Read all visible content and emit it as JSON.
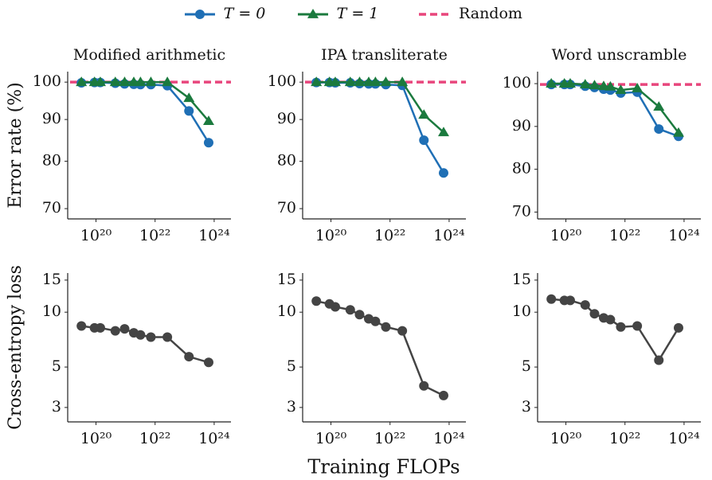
{
  "figure": {
    "xlabel": "Training FLOPs"
  },
  "chart_data": [
    {
      "type": "line",
      "title": "Modified arithmetic",
      "ylabel": "Error rate (%)",
      "xlog": true,
      "ylog": true,
      "x": [
        3.2e+19,
        8.9e+19,
        1.4e+20,
        4.5e+20,
        9.3e+20,
        1.9e+21,
        3.2e+21,
        7.2e+21,
        2.6e+22,
        1.4e+23,
        6.5e+23
      ],
      "xlim": [
        1.1e+19,
        3.7e+24
      ],
      "xticks": [
        {
          "value": 1e+20,
          "label": "10²⁰"
        },
        {
          "value": 1e+22,
          "label": "10²²"
        },
        {
          "value": 1e+24,
          "label": "10²⁴"
        }
      ],
      "ylim": [
        68,
        103
      ],
      "yticks": [
        70,
        80,
        90,
        100
      ],
      "series": [
        {
          "name": "T = 0",
          "color": "#1f6fb5",
          "marker": "circle",
          "values": [
            99.8,
            99.9,
            99.9,
            99.7,
            99.5,
            99.4,
            99.3,
            99.3,
            99.0,
            92.2,
            84.3
          ]
        },
        {
          "name": "T = 1",
          "color": "#1b7a3e",
          "marker": "triangle",
          "values": [
            100,
            100,
            100,
            100,
            100,
            100,
            100,
            100,
            100,
            95.6,
            89.6
          ]
        }
      ],
      "hlines": [
        {
          "name": "Random",
          "color": "#e8467c",
          "value": 100
        }
      ]
    },
    {
      "type": "line",
      "title": "IPA transliterate",
      "xlog": true,
      "ylog": true,
      "x": [
        3.2e+19,
        8.9e+19,
        1.4e+20,
        4.5e+20,
        9.3e+20,
        1.9e+21,
        3.2e+21,
        7.2e+21,
        2.6e+22,
        1.4e+23,
        6.5e+23
      ],
      "xlim": [
        1.1e+19,
        3.7e+24
      ],
      "xticks": [
        {
          "value": 1e+20,
          "label": "10²⁰"
        },
        {
          "value": 1e+22,
          "label": "10²²"
        },
        {
          "value": 1e+24,
          "label": "10²⁴"
        }
      ],
      "ylim": [
        68,
        103
      ],
      "yticks": [
        70,
        80,
        90,
        100
      ],
      "series": [
        {
          "name": "T = 0",
          "color": "#1f6fb5",
          "marker": "circle",
          "values": [
            99.9,
            99.9,
            99.8,
            99.8,
            99.6,
            99.5,
            99.5,
            99.3,
            99.1,
            84.9,
            77.4
          ]
        },
        {
          "name": "T = 1",
          "color": "#1b7a3e",
          "marker": "triangle",
          "values": [
            100,
            100,
            100,
            100,
            100,
            100,
            100,
            100,
            100,
            91.2,
            86.8
          ]
        }
      ],
      "hlines": [
        {
          "name": "Random",
          "color": "#e8467c",
          "value": 100
        }
      ]
    },
    {
      "type": "line",
      "title": "Word unscramble",
      "xlog": true,
      "ylog": false,
      "x": [
        3.2e+19,
        8.9e+19,
        1.4e+20,
        4.5e+20,
        9.3e+20,
        1.9e+21,
        3.2e+21,
        7.2e+21,
        2.6e+22,
        1.4e+23,
        6.5e+23
      ],
      "xlim": [
        1.1e+19,
        3.7e+24
      ],
      "xticks": [
        {
          "value": 1e+20,
          "label": "10²⁰"
        },
        {
          "value": 1e+22,
          "label": "10²²"
        },
        {
          "value": 1e+24,
          "label": "10²⁴"
        }
      ],
      "ylim": [
        68.4,
        102.8
      ],
      "yticks": [
        70,
        80,
        90,
        100
      ],
      "series": [
        {
          "name": "T = 0",
          "color": "#1f6fb5",
          "marker": "circle",
          "values": [
            99.8,
            99.8,
            99.8,
            99.4,
            99.1,
            98.7,
            98.5,
            97.8,
            98.0,
            89.4,
            87.7
          ]
        },
        {
          "name": "T = 1",
          "color": "#1b7a3e",
          "marker": "triangle",
          "values": [
            100,
            100,
            100,
            99.8,
            99.6,
            99.4,
            99.3,
            98.5,
            98.9,
            94.6,
            88.5
          ]
        }
      ],
      "hlines": [
        {
          "name": "Random",
          "color": "#e8467c",
          "value": 99.8
        }
      ]
    },
    {
      "type": "line",
      "ylabel": "Cross-entropy loss",
      "xlog": true,
      "ylog": true,
      "x": [
        3.2e+19,
        8.9e+19,
        1.4e+20,
        4.5e+20,
        9.3e+20,
        1.9e+21,
        3.2e+21,
        7.2e+21,
        2.6e+22,
        1.4e+23,
        6.5e+23
      ],
      "xlim": [
        1.1e+19,
        3.7e+24
      ],
      "xticks": [
        {
          "value": 1e+20,
          "label": "10²⁰"
        },
        {
          "value": 1e+22,
          "label": "10²²"
        },
        {
          "value": 1e+24,
          "label": "10²⁴"
        }
      ],
      "ylim": [
        2.5,
        16.4
      ],
      "yticks": [
        3,
        5,
        10,
        15
      ],
      "series": [
        {
          "color": "#444444",
          "marker": "circle",
          "values": [
            8.4,
            8.2,
            8.2,
            7.9,
            8.1,
            7.7,
            7.5,
            7.3,
            7.3,
            5.7,
            5.3
          ]
        }
      ]
    },
    {
      "type": "line",
      "xlog": true,
      "ylog": true,
      "x": [
        3.2e+19,
        8.9e+19,
        1.4e+20,
        4.5e+20,
        9.3e+20,
        1.9e+21,
        3.2e+21,
        7.2e+21,
        2.6e+22,
        1.4e+23,
        6.5e+23
      ],
      "xlim": [
        1.1e+19,
        3.7e+24
      ],
      "xticks": [
        {
          "value": 1e+20,
          "label": "10²⁰"
        },
        {
          "value": 1e+22,
          "label": "10²²"
        },
        {
          "value": 1e+24,
          "label": "10²⁴"
        }
      ],
      "ylim": [
        2.5,
        16.4
      ],
      "yticks": [
        3,
        5,
        10,
        15
      ],
      "series": [
        {
          "color": "#444444",
          "marker": "circle",
          "values": [
            11.5,
            11.1,
            10.7,
            10.3,
            9.7,
            9.2,
            8.9,
            8.3,
            7.9,
            3.94,
            3.49
          ]
        }
      ]
    },
    {
      "type": "line",
      "xlog": true,
      "ylog": true,
      "x": [
        3.2e+19,
        8.9e+19,
        1.4e+20,
        4.5e+20,
        9.3e+20,
        1.9e+21,
        3.2e+21,
        7.2e+21,
        2.6e+22,
        1.4e+23,
        6.5e+23
      ],
      "xlim": [
        1.1e+19,
        3.7e+24
      ],
      "xticks": [
        {
          "value": 1e+20,
          "label": "10²⁰"
        },
        {
          "value": 1e+22,
          "label": "10²²"
        },
        {
          "value": 1e+24,
          "label": "10²⁴"
        }
      ],
      "ylim": [
        2.5,
        16.4
      ],
      "yticks": [
        3,
        5,
        10,
        15
      ],
      "series": [
        {
          "color": "#444444",
          "marker": "circle",
          "values": [
            11.8,
            11.6,
            11.6,
            10.96,
            9.8,
            9.3,
            9.1,
            8.3,
            8.4,
            5.45,
            8.2
          ]
        }
      ]
    }
  ]
}
